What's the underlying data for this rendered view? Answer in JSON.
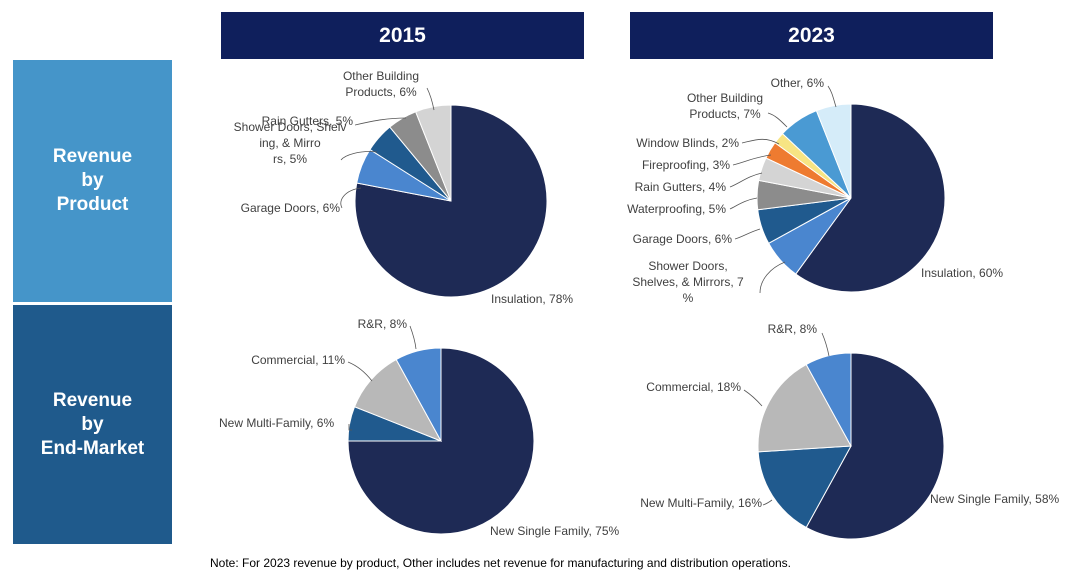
{
  "headers": {
    "year_left": "2015",
    "year_right": "2023"
  },
  "row_labels": {
    "product": "Revenue\nby\nProduct",
    "end_market": "Revenue\nby\nEnd-Market"
  },
  "colors": {
    "header_bg": "#0f1f5c",
    "row_product_bg": "#4595c9",
    "row_end_market_bg": "#1f5a8c",
    "slice_border": "#ffffff",
    "leader_line": "#555555"
  },
  "chart_data": [
    {
      "id": "product-2015",
      "type": "pie",
      "title": "2015",
      "row": "Revenue by Product",
      "slices": [
        {
          "label": "Insulation, 78%",
          "value": 78,
          "color": "#1e2a55"
        },
        {
          "label": "Garage Doors, 6%",
          "value": 6,
          "color": "#4a86cf"
        },
        {
          "label": "Shower Doors, Shelving, & Mirrors, 5%",
          "value": 5,
          "color": "#205a8e"
        },
        {
          "label": "Rain Gutters, 5%",
          "value": 5,
          "color": "#8c8c8c"
        },
        {
          "label": "Other Building Products, 6%",
          "value": 6,
          "color": "#d4d4d4"
        }
      ]
    },
    {
      "id": "product-2023",
      "type": "pie",
      "title": "2023",
      "row": "Revenue by Product",
      "slices": [
        {
          "label": "Insulation, 60%",
          "value": 60,
          "color": "#1e2a55"
        },
        {
          "label": "Shower Doors, Shelves, & Mirrors, 7%",
          "value": 7,
          "color": "#4a86cf"
        },
        {
          "label": "Garage Doors, 6%",
          "value": 6,
          "color": "#205a8e"
        },
        {
          "label": "Waterproofing, 5%",
          "value": 5,
          "color": "#8c8c8c"
        },
        {
          "label": "Rain Gutters, 4%",
          "value": 4,
          "color": "#d4d4d4"
        },
        {
          "label": "Fireproofing, 3%",
          "value": 3,
          "color": "#ee7b30"
        },
        {
          "label": "Window Blinds, 2%",
          "value": 2,
          "color": "#f7e483"
        },
        {
          "label": "Other Building Products, 7%",
          "value": 7,
          "color": "#4a9ad3"
        },
        {
          "label": "Other, 6%",
          "value": 6,
          "color": "#d5ecf9"
        }
      ]
    },
    {
      "id": "end-market-2015",
      "type": "pie",
      "title": "2015",
      "row": "Revenue by End-Market",
      "slices": [
        {
          "label": "New Single Family, 75%",
          "value": 75,
          "color": "#1e2a55"
        },
        {
          "label": "New Multi-Family, 6%",
          "value": 6,
          "color": "#205a8e"
        },
        {
          "label": "Commercial, 11%",
          "value": 11,
          "color": "#b8b8b8"
        },
        {
          "label": "R&R, 8%",
          "value": 8,
          "color": "#4a86cf"
        }
      ]
    },
    {
      "id": "end-market-2023",
      "type": "pie",
      "title": "2023",
      "row": "Revenue by End-Market",
      "slices": [
        {
          "label": "New Single Family, 58%",
          "value": 58,
          "color": "#1e2a55"
        },
        {
          "label": "New Multi-Family, 16%",
          "value": 16,
          "color": "#205a8e"
        },
        {
          "label": "Commercial, 18%",
          "value": 18,
          "color": "#b8b8b8"
        },
        {
          "label": "R&R, 8%",
          "value": 8,
          "color": "#4a86cf"
        }
      ]
    }
  ],
  "note": "Note: For 2023 revenue by product, Other includes net revenue for manufacturing and distribution operations."
}
